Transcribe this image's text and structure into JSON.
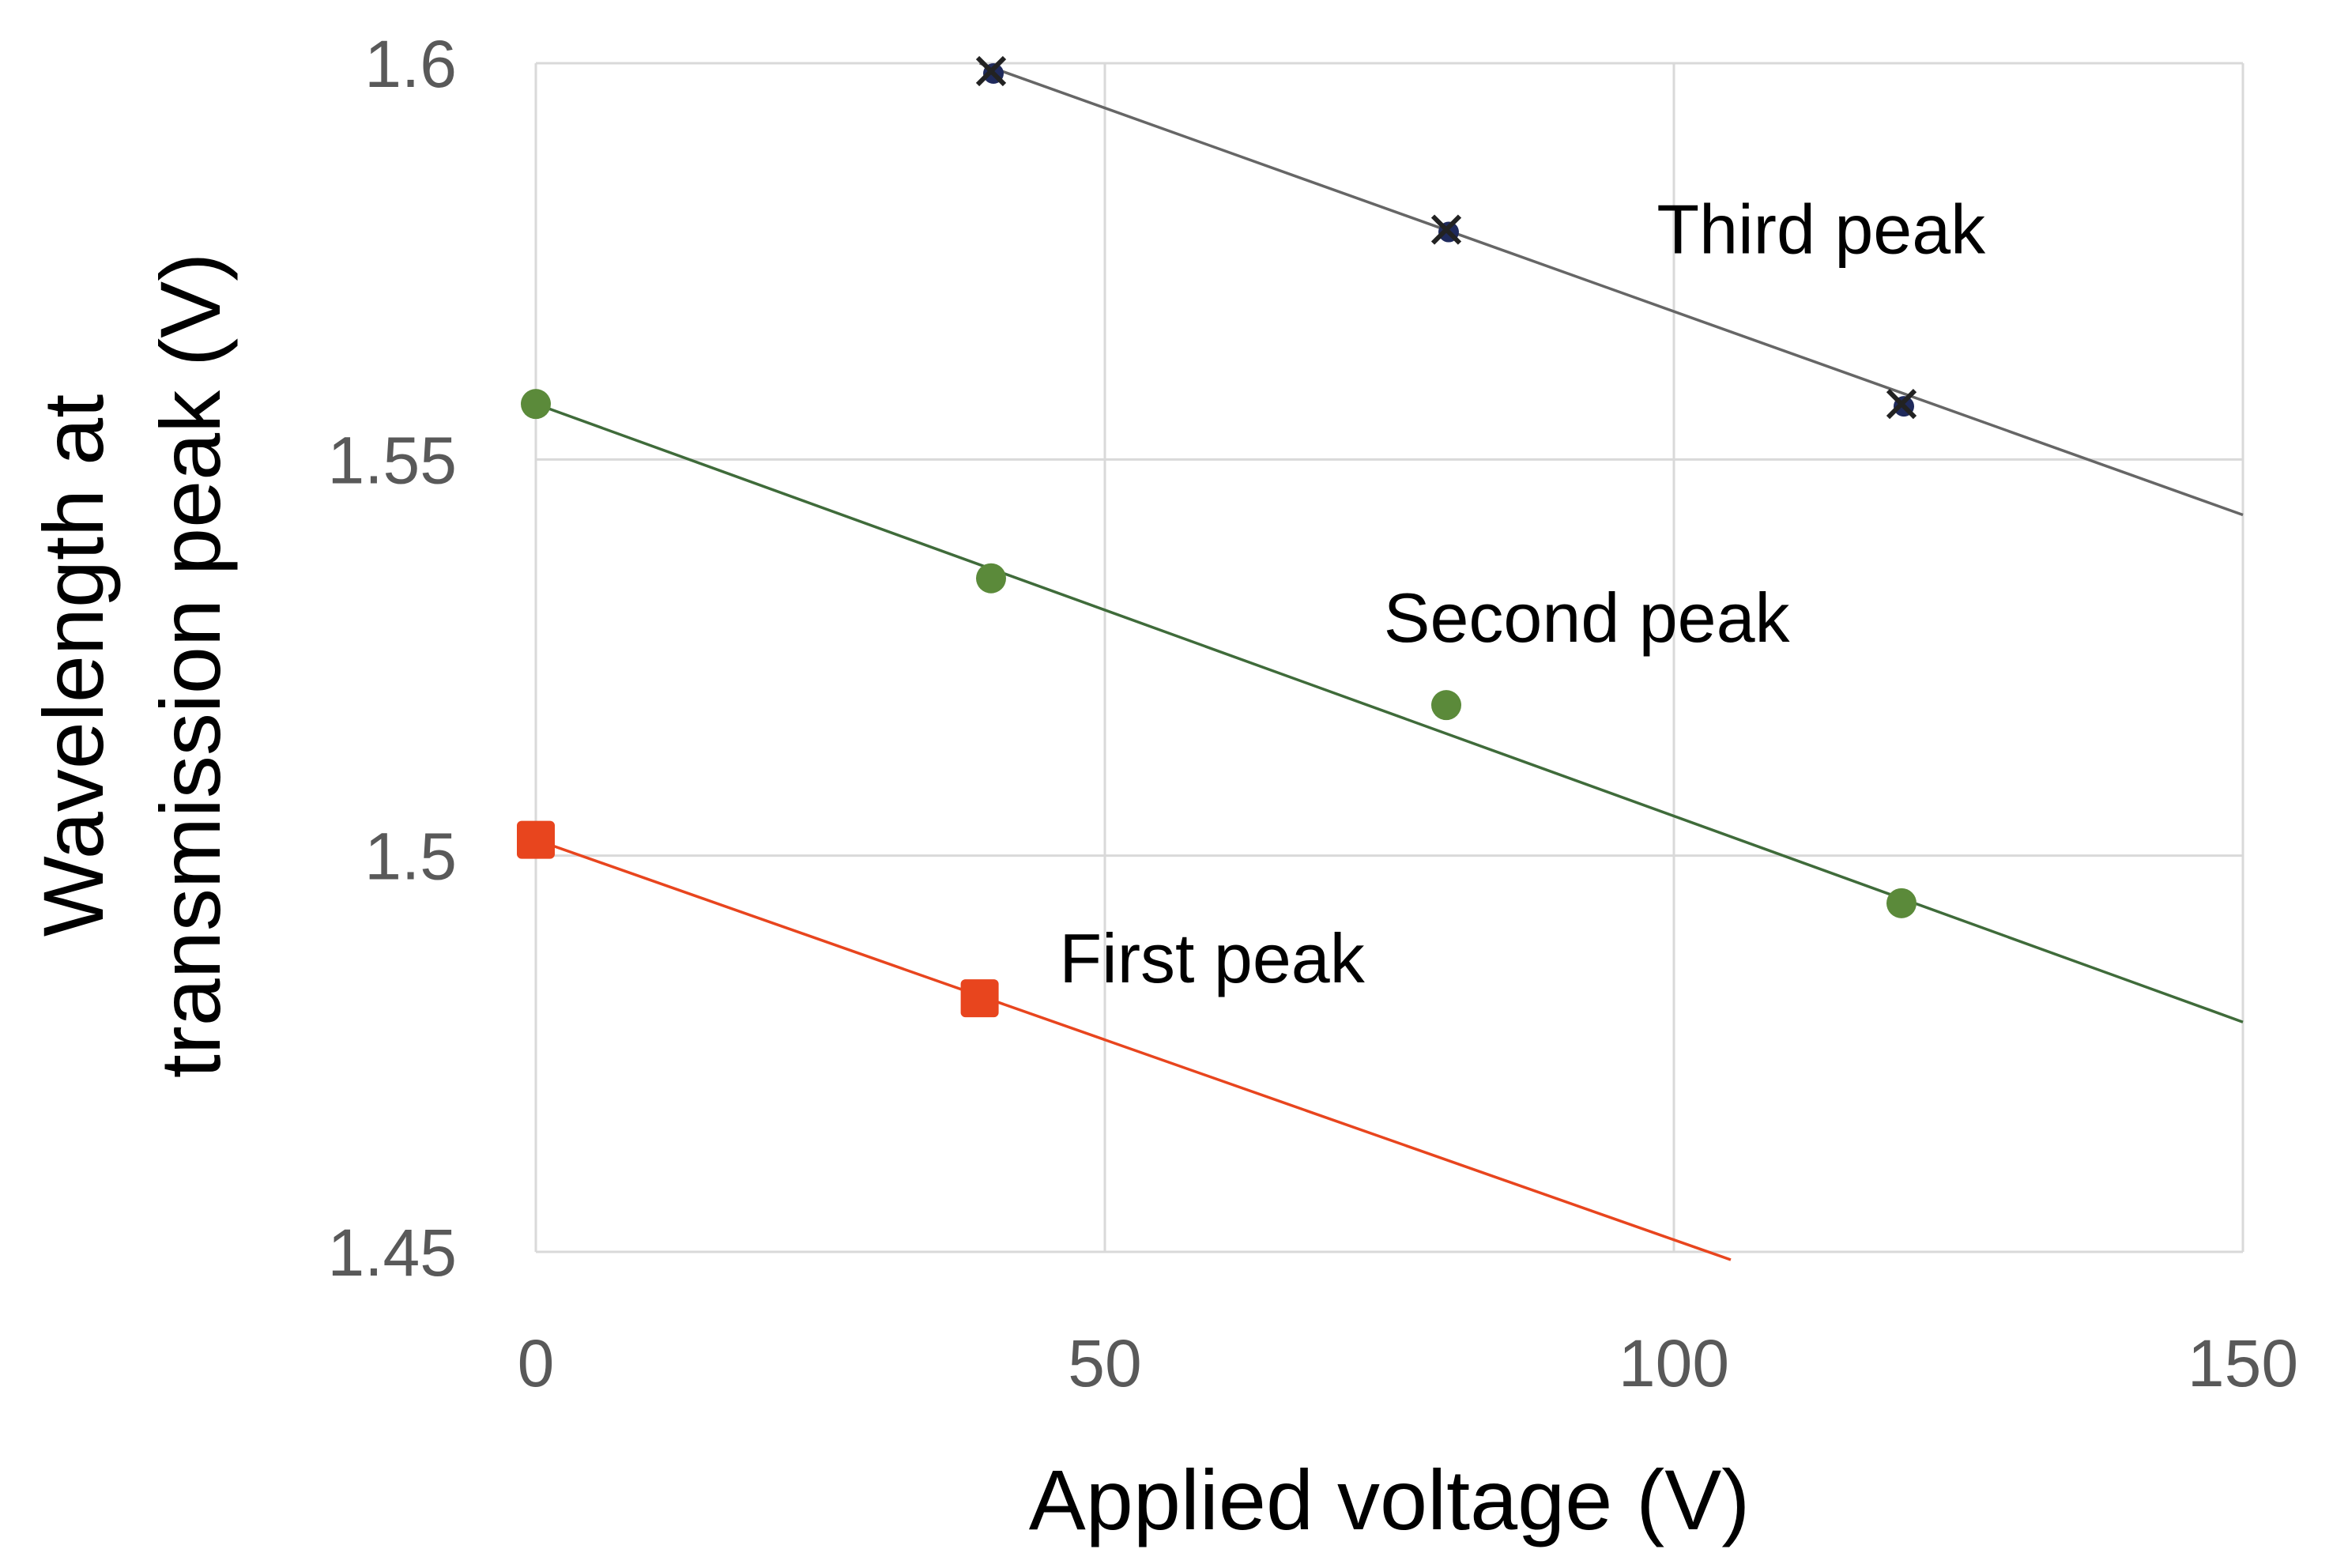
{
  "chart_data": {
    "type": "scatter",
    "title": "",
    "xlabel": "Applied voltage (V)",
    "ylabel_lines": [
      "Wavelength at",
      "transmission peak (V)"
    ],
    "xlim": [
      0,
      150
    ],
    "ylim": [
      1.45,
      1.6
    ],
    "xticks": [
      0,
      50,
      100,
      150
    ],
    "xtick_labels": [
      "0",
      "50",
      "100",
      "150"
    ],
    "yticks": [
      1.45,
      1.5,
      1.55,
      1.6
    ],
    "ytick_labels": [
      "1.45",
      "1.5",
      "1.55",
      "1.6"
    ],
    "grid": true,
    "series": [
      {
        "name": "First peak",
        "marker": "square",
        "color": "#e8451e",
        "points": [
          {
            "x": 0,
            "y": 1.502
          },
          {
            "x": 39,
            "y": 1.482
          }
        ],
        "trendline": {
          "x_start": 0,
          "x_end": 105,
          "y_start": 1.502,
          "y_end": 1.449
        }
      },
      {
        "name": "Second peak",
        "marker": "circle",
        "color": "#5b8a3a",
        "trendline_color": "#3f6b3a",
        "points": [
          {
            "x": 0,
            "y": 1.557
          },
          {
            "x": 40,
            "y": 1.535
          },
          {
            "x": 80,
            "y": 1.519
          },
          {
            "x": 120,
            "y": 1.494
          }
        ],
        "trendline": {
          "x_start": 0,
          "x_end": 150,
          "y_start": 1.557,
          "y_end": 1.479
        }
      },
      {
        "name": "Third peak",
        "marker": "cross-dot",
        "color": "#1f2a5c",
        "trendline_color": "#666666",
        "points": [
          {
            "x": 40,
            "y": 1.599
          },
          {
            "x": 80,
            "y": 1.579
          },
          {
            "x": 120,
            "y": 1.557
          }
        ],
        "trendline": {
          "x_start": 39,
          "x_end": 150,
          "y_start": 1.6,
          "y_end": 1.543
        }
      }
    ],
    "annotations": [
      {
        "text": "Third peak",
        "x": 98.5,
        "y": 1.576
      },
      {
        "text": "Second peak",
        "x": 74.5,
        "y": 1.527
      },
      {
        "text": "First peak",
        "x": 46,
        "y": 1.484
      }
    ]
  }
}
